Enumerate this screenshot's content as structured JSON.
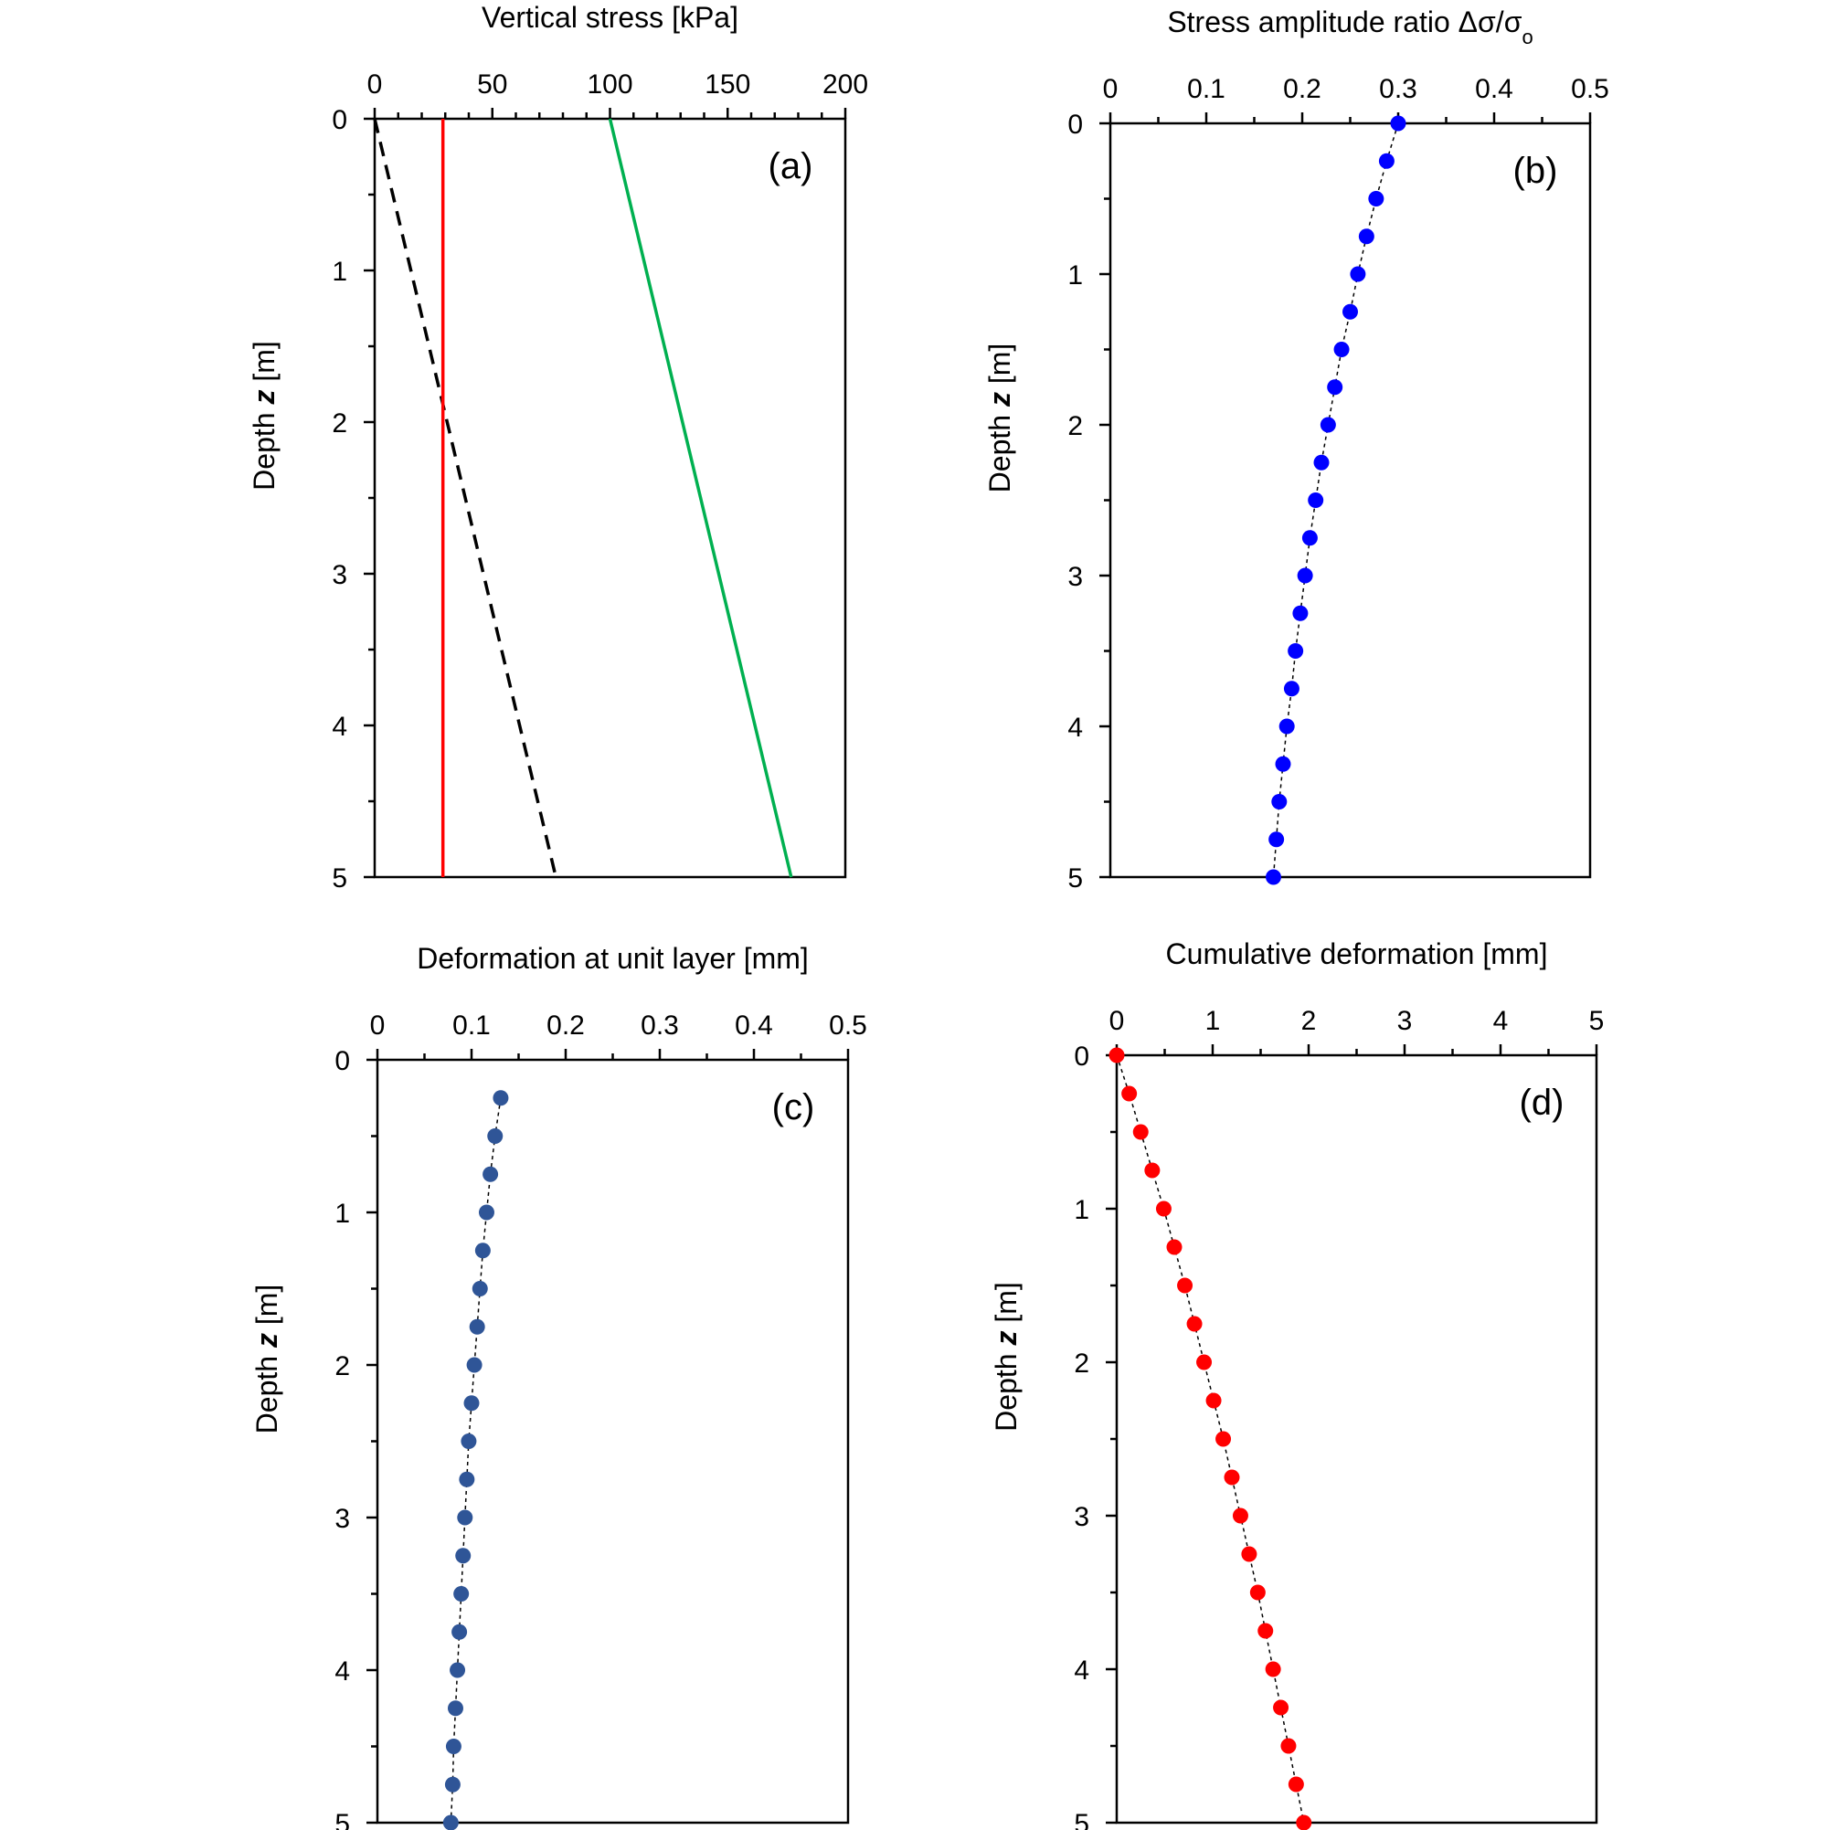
{
  "chart_data": [
    {
      "type": "line",
      "panel_label": "(a)",
      "xlabel": "Vertical stress [kPa]",
      "ylabel_parts": [
        "Depth ",
        "z",
        " [m]"
      ],
      "xlim": [
        0,
        200
      ],
      "ylim": [
        0,
        5
      ],
      "xticks": [
        0,
        50,
        100,
        150,
        200
      ],
      "yticks": [
        0,
        1,
        2,
        3,
        4,
        5
      ],
      "x_minor_step": 10,
      "y_minor_step": 0.5,
      "y_inverted": true,
      "x_axis_position": "top",
      "series": [
        {
          "color": "#000000",
          "dash": true,
          "marker": "none",
          "x": [
            0,
            77
          ],
          "y": [
            0,
            5
          ]
        },
        {
          "color": "#ff0000",
          "dash": false,
          "marker": "none",
          "x": [
            29,
            29
          ],
          "y": [
            0,
            5
          ]
        },
        {
          "color": "#00b050",
          "dash": false,
          "marker": "none",
          "x": [
            100,
            177
          ],
          "y": [
            0,
            5
          ]
        }
      ]
    },
    {
      "type": "scatter",
      "panel_label": "(b)",
      "xlabel": "Stress amplitude ratio Δσ/σ",
      "xlabel_subscript": "o",
      "ylabel_parts": [
        "Depth ",
        "z",
        " [m]"
      ],
      "xlim": [
        0,
        0.5
      ],
      "ylim": [
        0,
        5
      ],
      "xticks": [
        0,
        0.1,
        0.2,
        0.3,
        0.4,
        0.5
      ],
      "yticks": [
        0,
        1,
        2,
        3,
        4,
        5
      ],
      "x_minor_step": 0.05,
      "y_minor_step": 0.5,
      "y_inverted": true,
      "x_axis_position": "top",
      "series": [
        {
          "color": "#0000ff",
          "dash": true,
          "marker": "circle",
          "x": [
            0.3,
            0.288,
            0.277,
            0.267,
            0.258,
            0.25,
            0.241,
            0.234,
            0.227,
            0.22,
            0.214,
            0.208,
            0.203,
            0.198,
            0.193,
            0.189,
            0.184,
            0.18,
            0.176,
            0.173,
            0.17
          ],
          "y": [
            0,
            0.25,
            0.5,
            0.75,
            1,
            1.25,
            1.5,
            1.75,
            2,
            2.25,
            2.5,
            2.75,
            3,
            3.25,
            3.5,
            3.75,
            4,
            4.25,
            4.5,
            4.75,
            5
          ]
        }
      ]
    },
    {
      "type": "scatter",
      "panel_label": "(c)",
      "xlabel": "Deformation at unit layer [mm]",
      "ylabel_parts": [
        "Depth ",
        "z",
        " [m]"
      ],
      "xlim": [
        0,
        0.5
      ],
      "ylim": [
        0,
        5
      ],
      "xticks": [
        0,
        0.1,
        0.2,
        0.3,
        0.4,
        0.5
      ],
      "yticks": [
        0,
        1,
        2,
        3,
        4,
        5
      ],
      "x_minor_step": 0.05,
      "y_minor_step": 0.5,
      "y_inverted": true,
      "x_axis_position": "top",
      "series": [
        {
          "color": "#2f5597",
          "dash": true,
          "marker": "circle",
          "x": [
            0.131,
            0.125,
            0.12,
            0.116,
            0.112,
            0.109,
            0.106,
            0.103,
            0.1,
            0.097,
            0.095,
            0.093,
            0.091,
            0.089,
            0.087,
            0.085,
            0.083,
            0.081,
            0.08,
            0.078
          ],
          "y": [
            0.25,
            0.5,
            0.75,
            1,
            1.25,
            1.5,
            1.75,
            2,
            2.25,
            2.5,
            2.75,
            3,
            3.25,
            3.5,
            3.75,
            4,
            4.25,
            4.5,
            4.75,
            5
          ]
        }
      ]
    },
    {
      "type": "scatter",
      "panel_label": "(d)",
      "xlabel": "Cumulative deformation [mm]",
      "ylabel_parts": [
        "Depth ",
        "z",
        " [m]"
      ],
      "xlim": [
        0,
        5
      ],
      "ylim": [
        0,
        5
      ],
      "xticks": [
        0,
        1,
        2,
        3,
        4,
        5
      ],
      "yticks": [
        0,
        1,
        2,
        3,
        4,
        5
      ],
      "x_minor_step": 0.5,
      "y_minor_step": 0.5,
      "y_inverted": true,
      "x_axis_position": "top",
      "series": [
        {
          "color": "#ff0000",
          "dash": true,
          "marker": "circle",
          "x": [
            0,
            0.13,
            0.25,
            0.37,
            0.49,
            0.6,
            0.71,
            0.81,
            0.91,
            1.01,
            1.11,
            1.2,
            1.29,
            1.38,
            1.47,
            1.55,
            1.63,
            1.71,
            1.79,
            1.87,
            1.95
          ],
          "y": [
            0,
            0.25,
            0.5,
            0.75,
            1,
            1.25,
            1.5,
            1.75,
            2,
            2.25,
            2.5,
            2.75,
            3,
            3.25,
            3.5,
            3.75,
            4,
            4.25,
            4.5,
            4.75,
            5
          ]
        }
      ]
    }
  ]
}
